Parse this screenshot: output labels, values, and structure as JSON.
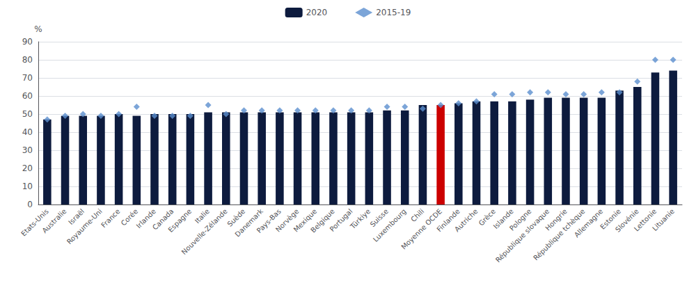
{
  "chart_data": {
    "type": "bar",
    "ylabel": "%",
    "categories": [
      "Etats-Unis",
      "Australie",
      "Israël",
      "Royaume-Uni",
      "France",
      "Corée",
      "Irlande",
      "Canada",
      "Espagne",
      "Italie",
      "Nouvelle-Zélande",
      "Suède",
      "Danemark",
      "Pays-Bas",
      "Norvège",
      "Mexique",
      "Belgique",
      "Portugal",
      "Türkiye",
      "Suisse",
      "Luxembourg",
      "Chili",
      "Moyenne OCDE",
      "Finlande",
      "Autriche",
      "Grèce",
      "Islande",
      "Pologne",
      "République slovaque",
      "Hongrie",
      "République tchèque",
      "Allemagne",
      "Estonie",
      "Slovénie",
      "Lettonie",
      "Lituanie"
    ],
    "series": [
      {
        "name": "2020",
        "type": "bar",
        "color": "#0d1b3e",
        "colors": [
          "#0d1b3e",
          "#0d1b3e",
          "#0d1b3e",
          "#0d1b3e",
          "#0d1b3e",
          "#0d1b3e",
          "#0d1b3e",
          "#0d1b3e",
          "#0d1b3e",
          "#0d1b3e",
          "#0d1b3e",
          "#0d1b3e",
          "#0d1b3e",
          "#0d1b3e",
          "#0d1b3e",
          "#0d1b3e",
          "#0d1b3e",
          "#0d1b3e",
          "#0d1b3e",
          "#0d1b3e",
          "#0d1b3e",
          "#0d1b3e",
          "#cc0000",
          "#0d1b3e",
          "#0d1b3e",
          "#0d1b3e",
          "#0d1b3e",
          "#0d1b3e",
          "#0d1b3e",
          "#0d1b3e",
          "#0d1b3e",
          "#0d1b3e",
          "#0d1b3e",
          "#0d1b3e",
          "#0d1b3e",
          "#0d1b3e"
        ],
        "values": [
          47,
          49,
          49,
          49,
          50,
          49,
          50,
          50,
          50,
          51,
          51,
          51,
          51,
          51,
          51,
          51,
          51,
          51,
          51,
          52,
          52,
          55,
          55,
          56,
          57,
          57,
          57,
          58,
          59,
          59,
          59,
          59,
          63,
          65,
          73,
          74
        ]
      },
      {
        "name": "2015-19",
        "type": "scatter",
        "marker": "diamond",
        "color": "#5b8fce",
        "values": [
          47,
          49,
          50,
          49,
          50,
          54,
          49,
          49,
          49,
          55,
          50,
          52,
          52,
          52,
          52,
          52,
          52,
          52,
          52,
          54,
          54,
          53,
          55,
          56,
          57,
          61,
          61,
          62,
          62,
          61,
          61,
          62,
          62,
          68,
          80,
          80
        ]
      }
    ],
    "ylim": [
      0,
      90
    ],
    "yticks": [
      0,
      10,
      20,
      30,
      40,
      50,
      60,
      70,
      80,
      90
    ],
    "grid": true,
    "legend": "top"
  }
}
